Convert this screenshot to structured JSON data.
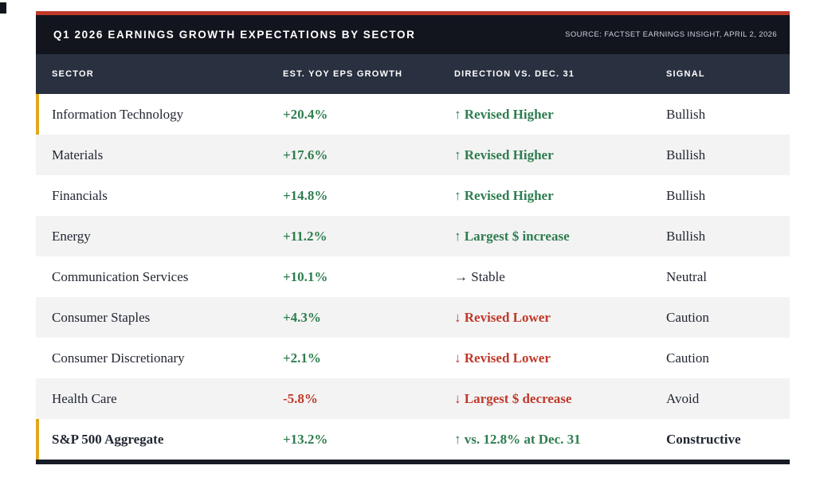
{
  "colors": {
    "top_bar_red": "#c0392b",
    "title_bar_bg": "#12151e",
    "column_header_bg": "#293040",
    "stripe_gray": "#f3f3f3",
    "accent_gold": "#e0a81e",
    "bottom_bar": "#171b26",
    "text_dark": "#222733",
    "positive_green": "#2e7d4f",
    "negative_red": "#c0392b",
    "source_text": "#ccd1da"
  },
  "header": {
    "title": "Q1 2026 EARNINGS GROWTH EXPECTATIONS BY SECTOR",
    "source": "SOURCE: FACTSET EARNINGS INSIGHT, APRIL 2, 2026"
  },
  "columns": [
    "SECTOR",
    "EST. YOY EPS GROWTH",
    "DIRECTION VS. DEC. 31",
    "SIGNAL"
  ],
  "rows": [
    {
      "sector": "Information Technology",
      "eps": "+20.4%",
      "eps_tone": "green",
      "direction": "↑ Revised Higher",
      "direction_tone": "green",
      "direction_bold": true,
      "signal": "Bullish",
      "accent": true,
      "bold": false
    },
    {
      "sector": "Materials",
      "eps": "+17.6%",
      "eps_tone": "green",
      "direction": "↑ Revised Higher",
      "direction_tone": "green",
      "direction_bold": true,
      "signal": "Bullish",
      "accent": false,
      "bold": false
    },
    {
      "sector": "Financials",
      "eps": "+14.8%",
      "eps_tone": "green",
      "direction": "↑ Revised Higher",
      "direction_tone": "green",
      "direction_bold": true,
      "signal": "Bullish",
      "accent": false,
      "bold": false
    },
    {
      "sector": "Energy",
      "eps": "+11.2%",
      "eps_tone": "green",
      "direction": "↑ Largest $ increase",
      "direction_tone": "green",
      "direction_bold": true,
      "signal": "Bullish",
      "accent": false,
      "bold": false
    },
    {
      "sector": "Communication Services",
      "eps": "+10.1%",
      "eps_tone": "green",
      "direction": "→ Stable",
      "direction_tone": "neutral",
      "direction_bold": false,
      "signal": "Neutral",
      "accent": false,
      "bold": false
    },
    {
      "sector": "Consumer Staples",
      "eps": "+4.3%",
      "eps_tone": "green",
      "direction": "↓ Revised Lower",
      "direction_tone": "red",
      "direction_bold": true,
      "signal": "Caution",
      "accent": false,
      "bold": false
    },
    {
      "sector": "Consumer Discretionary",
      "eps": "+2.1%",
      "eps_tone": "green",
      "direction": "↓ Revised Lower",
      "direction_tone": "red",
      "direction_bold": true,
      "signal": "Caution",
      "accent": false,
      "bold": false
    },
    {
      "sector": "Health Care",
      "eps": "-5.8%",
      "eps_tone": "red",
      "direction": "↓ Largest $ decrease",
      "direction_tone": "red",
      "direction_bold": true,
      "signal": "Avoid",
      "accent": false,
      "bold": false
    },
    {
      "sector": "S&P 500 Aggregate",
      "eps": "+13.2%",
      "eps_tone": "green",
      "direction": "↑ vs. 12.8% at Dec. 31",
      "direction_tone": "green",
      "direction_bold": true,
      "signal": "Constructive",
      "accent": true,
      "bold": true
    }
  ],
  "chart_data": {
    "type": "table",
    "title": "Q1 2026 EARNINGS GROWTH EXPECTATIONS BY SECTOR",
    "source": "SOURCE: FACTSET EARNINGS INSIGHT, APRIL 2, 2026",
    "columns": [
      "SECTOR",
      "EST. YOY EPS GROWTH",
      "DIRECTION VS. DEC. 31",
      "SIGNAL"
    ],
    "rows": [
      [
        "Information Technology",
        "+20.4%",
        "↑ Revised Higher",
        "Bullish"
      ],
      [
        "Materials",
        "+17.6%",
        "↑ Revised Higher",
        "Bullish"
      ],
      [
        "Financials",
        "+14.8%",
        "↑ Revised Higher",
        "Bullish"
      ],
      [
        "Energy",
        "+11.2%",
        "↑ Largest $ increase",
        "Bullish"
      ],
      [
        "Communication Services",
        "+10.1%",
        "→ Stable",
        "Neutral"
      ],
      [
        "Consumer Staples",
        "+4.3%",
        "↓ Revised Lower",
        "Caution"
      ],
      [
        "Consumer Discretionary",
        "+2.1%",
        "↓ Revised Lower",
        "Caution"
      ],
      [
        "Health Care",
        "-5.8%",
        "↓ Largest $ decrease",
        "Avoid"
      ],
      [
        "S&P 500 Aggregate",
        "+13.2%",
        "↑ vs. 12.8% at Dec. 31",
        "Constructive"
      ]
    ],
    "eps_growth_pct": {
      "Information Technology": 20.4,
      "Materials": 17.6,
      "Financials": 14.8,
      "Energy": 11.2,
      "Communication Services": 10.1,
      "Consumer Staples": 4.3,
      "Consumer Discretionary": 2.1,
      "Health Care": -5.8,
      "S&P 500 Aggregate": 13.2
    },
    "prior_aggregate_reference": "12.8% at Dec. 31"
  }
}
